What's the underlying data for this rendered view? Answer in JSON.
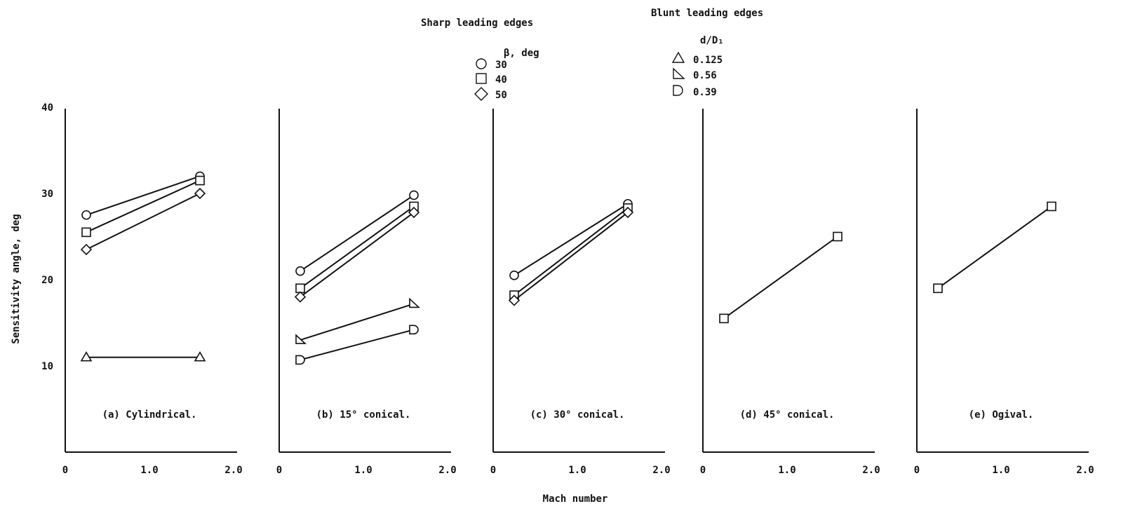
{
  "legend": {
    "sharp": {
      "title": "Sharp leading edges",
      "header": "β, deg",
      "items": [
        {
          "marker": "circle",
          "label": "30"
        },
        {
          "marker": "square",
          "label": "40"
        },
        {
          "marker": "diamond",
          "label": "50"
        }
      ]
    },
    "blunt": {
      "title": "Blunt leading edges",
      "header": "d/D₁",
      "items": [
        {
          "marker": "triangle",
          "label": "0.125"
        },
        {
          "marker": "triangle-right",
          "label": "0.56"
        },
        {
          "marker": "semicircle",
          "label": "0.39"
        }
      ]
    }
  },
  "axes": {
    "ylabel": "Sensitivity angle, deg",
    "xlabel": "Mach number",
    "yticks": [
      "10",
      "20",
      "30",
      "40"
    ],
    "xticks": [
      "0",
      "1.0",
      "2.0"
    ]
  },
  "chart_data": [
    {
      "type": "line",
      "panel_caption": "(a) Cylindrical.",
      "xlim": [
        0,
        2.0
      ],
      "ylim": [
        0,
        40
      ],
      "series": [
        {
          "marker": "circle",
          "x": [
            0.25,
            1.6
          ],
          "y": [
            27.5,
            32
          ]
        },
        {
          "marker": "square",
          "x": [
            0.25,
            1.6
          ],
          "y": [
            25.5,
            31.5
          ]
        },
        {
          "marker": "diamond",
          "x": [
            0.25,
            1.6
          ],
          "y": [
            23.5,
            30
          ]
        },
        {
          "marker": "triangle",
          "x": [
            0.25,
            1.6
          ],
          "y": [
            11,
            11
          ]
        }
      ]
    },
    {
      "type": "line",
      "panel_caption": "(b) 15° conical.",
      "xlim": [
        0,
        2.0
      ],
      "ylim": [
        0,
        40
      ],
      "series": [
        {
          "marker": "circle",
          "x": [
            0.25,
            1.6
          ],
          "y": [
            21,
            29.8
          ]
        },
        {
          "marker": "square",
          "x": [
            0.25,
            1.6
          ],
          "y": [
            19,
            28.5
          ]
        },
        {
          "marker": "diamond",
          "x": [
            0.25,
            1.6
          ],
          "y": [
            18,
            27.8
          ]
        },
        {
          "marker": "triangle-right",
          "x": [
            0.25,
            1.6
          ],
          "y": [
            13,
            17.2
          ]
        },
        {
          "marker": "semicircle",
          "x": [
            0.25,
            1.6
          ],
          "y": [
            10.7,
            14.2
          ]
        }
      ]
    },
    {
      "type": "line",
      "panel_caption": "(c) 30° conical.",
      "xlim": [
        0,
        2.0
      ],
      "ylim": [
        0,
        40
      ],
      "series": [
        {
          "marker": "circle",
          "x": [
            0.25,
            1.6
          ],
          "y": [
            20.5,
            28.8
          ]
        },
        {
          "marker": "square",
          "x": [
            0.25,
            1.6
          ],
          "y": [
            18.2,
            28.3
          ]
        },
        {
          "marker": "diamond",
          "x": [
            0.25,
            1.6
          ],
          "y": [
            17.6,
            27.8
          ]
        }
      ]
    },
    {
      "type": "line",
      "panel_caption": "(d) 45° conical.",
      "xlim": [
        0,
        2.0
      ],
      "ylim": [
        0,
        40
      ],
      "series": [
        {
          "marker": "square",
          "x": [
            0.25,
            1.6
          ],
          "y": [
            15.5,
            25
          ]
        }
      ]
    },
    {
      "type": "line",
      "panel_caption": "(e) Ogival.",
      "xlim": [
        0,
        2.0
      ],
      "ylim": [
        0,
        40
      ],
      "series": [
        {
          "marker": "square",
          "x": [
            0.25,
            1.6
          ],
          "y": [
            19,
            28.5
          ]
        }
      ]
    }
  ]
}
